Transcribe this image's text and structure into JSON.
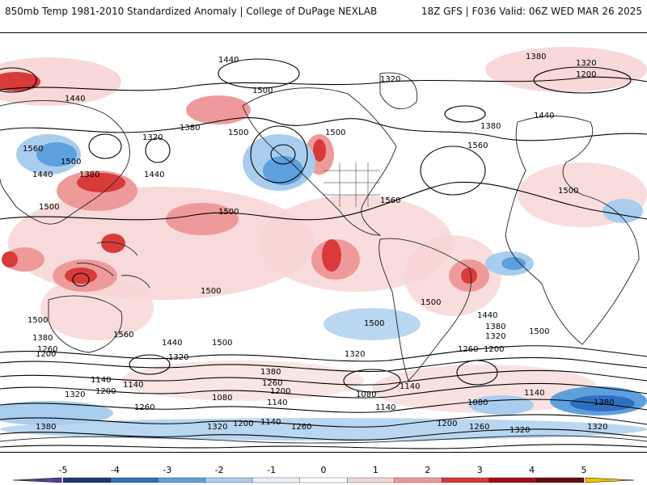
{
  "header": {
    "title_left": "850mb Temp 1981-2010 Standardized Anomaly | College of DuPage NEXLAB",
    "title_right": "18Z GFS | F036 Valid: 06Z WED MAR 26 2025"
  },
  "colorbar": {
    "ticks": [
      "-5",
      "-4",
      "-3",
      "-2",
      "-1",
      "0",
      "1",
      "2",
      "3",
      "4",
      "5"
    ],
    "colors": [
      "#5e3c99",
      "#1f3b6e",
      "#2f6fbf",
      "#5ea0dd",
      "#a9cdee",
      "#e6f1fb",
      "#ffffff",
      "#f7d4d4",
      "#ef9a9a",
      "#d93a3a",
      "#a30f17",
      "#6d0a0d",
      "#f5c400"
    ]
  },
  "map": {
    "contour_labels": [
      {
        "text": "1440"
      },
      {
        "text": "1380"
      },
      {
        "text": "1320"
      },
      {
        "text": "1200"
      },
      {
        "text": "1500"
      },
      {
        "text": "1440"
      },
      {
        "text": "1380"
      },
      {
        "text": "1320"
      },
      {
        "text": "1500"
      },
      {
        "text": "1320"
      },
      {
        "text": "1380"
      },
      {
        "text": "1440"
      },
      {
        "text": "1560"
      },
      {
        "text": "1500"
      },
      {
        "text": "1440"
      },
      {
        "text": "1380"
      },
      {
        "text": "1440"
      },
      {
        "text": "1500"
      },
      {
        "text": "1560"
      },
      {
        "text": "1500"
      },
      {
        "text": "1500"
      },
      {
        "text": "1500"
      },
      {
        "text": "1500"
      },
      {
        "text": "1560"
      },
      {
        "text": "1560"
      },
      {
        "text": "1500"
      },
      {
        "text": "1500"
      },
      {
        "text": "1500"
      },
      {
        "text": "1500"
      },
      {
        "text": "1440"
      },
      {
        "text": "1380"
      },
      {
        "text": "1320"
      },
      {
        "text": "1500"
      },
      {
        "text": "1380"
      },
      {
        "text": "1260"
      },
      {
        "text": "1200"
      },
      {
        "text": "1440"
      },
      {
        "text": "1320"
      },
      {
        "text": "1320"
      },
      {
        "text": "1260"
      },
      {
        "text": "1200"
      },
      {
        "text": "1380"
      },
      {
        "text": "1260"
      },
      {
        "text": "1200"
      },
      {
        "text": "1140"
      },
      {
        "text": "1140"
      },
      {
        "text": "1200"
      },
      {
        "text": "1320"
      },
      {
        "text": "1260"
      },
      {
        "text": "1080"
      },
      {
        "text": "1140"
      },
      {
        "text": "1080"
      },
      {
        "text": "1140"
      },
      {
        "text": "1080"
      },
      {
        "text": "1140"
      },
      {
        "text": "1140"
      },
      {
        "text": "1380"
      },
      {
        "text": "1380"
      },
      {
        "text": "1320"
      },
      {
        "text": "1200"
      },
      {
        "text": "1140"
      },
      {
        "text": "1260"
      },
      {
        "text": "1200"
      },
      {
        "text": "1260"
      },
      {
        "text": "1320"
      },
      {
        "text": "1320"
      }
    ]
  }
}
